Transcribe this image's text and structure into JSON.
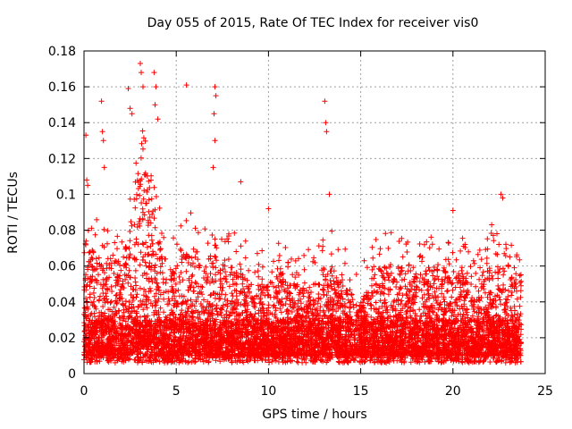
{
  "chart_data": {
    "type": "scatter",
    "title": "Day 055 of 2015, Rate Of TEC Index for receiver vis0",
    "xlabel": "GPS time / hours",
    "ylabel": "ROTI / TECUs",
    "xlim": [
      0,
      25
    ],
    "ylim": [
      0,
      0.18
    ],
    "xticks": [
      "0",
      "5",
      "10",
      "15",
      "20",
      "25"
    ],
    "yticks": [
      "0",
      "0.02",
      "0.04",
      "0.06",
      "0.08",
      "0.1",
      "0.12",
      "0.14",
      "0.16",
      "0.18"
    ],
    "grid": true,
    "marker": "+",
    "color": "#ff0000",
    "data_extent_hours": [
      0,
      23.7
    ],
    "envelope": {
      "note_hours": [
        0,
        0.3,
        0.6,
        1.0,
        1.5,
        2.0,
        2.5,
        3.0,
        3.5,
        4.0,
        4.5,
        5.0,
        5.5,
        6.0,
        6.5,
        7.0,
        7.5,
        8.0,
        8.5,
        9.0,
        9.5,
        10.0,
        10.5,
        11.0,
        11.5,
        12.0,
        12.5,
        13.0,
        13.5,
        14.0,
        14.5,
        15.0,
        15.5,
        16.0,
        16.5,
        17.0,
        17.5,
        18.0,
        18.5,
        19.0,
        19.5,
        20.0,
        20.5,
        21.0,
        21.5,
        22.0,
        22.5,
        23.0,
        23.5,
        23.7
      ],
      "upper_typical": [
        0.05,
        0.07,
        0.07,
        0.06,
        0.07,
        0.06,
        0.09,
        0.12,
        0.11,
        0.08,
        0.06,
        0.06,
        0.07,
        0.07,
        0.06,
        0.07,
        0.06,
        0.06,
        0.06,
        0.05,
        0.05,
        0.05,
        0.06,
        0.05,
        0.05,
        0.05,
        0.05,
        0.06,
        0.06,
        0.05,
        0.05,
        0.04,
        0.05,
        0.06,
        0.06,
        0.06,
        0.06,
        0.06,
        0.06,
        0.06,
        0.06,
        0.05,
        0.06,
        0.05,
        0.05,
        0.06,
        0.06,
        0.05,
        0.06,
        0.06
      ],
      "lower_typical": [
        0.01,
        0.01,
        0.01,
        0.01,
        0.01,
        0.01,
        0.01,
        0.015,
        0.015,
        0.01,
        0.01,
        0.01,
        0.01,
        0.01,
        0.01,
        0.01,
        0.01,
        0.01,
        0.01,
        0.01,
        0.01,
        0.01,
        0.01,
        0.01,
        0.01,
        0.01,
        0.01,
        0.01,
        0.01,
        0.01,
        0.01,
        0.01,
        0.01,
        0.01,
        0.01,
        0.01,
        0.01,
        0.01,
        0.01,
        0.01,
        0.01,
        0.01,
        0.01,
        0.01,
        0.01,
        0.01,
        0.01,
        0.01,
        0.01,
        0.01
      ]
    },
    "highlighted_points": [
      {
        "x": 0.1,
        "y": 0.133
      },
      {
        "x": 0.15,
        "y": 0.108
      },
      {
        "x": 0.2,
        "y": 0.105
      },
      {
        "x": 0.95,
        "y": 0.152
      },
      {
        "x": 1.0,
        "y": 0.135
      },
      {
        "x": 1.05,
        "y": 0.13
      },
      {
        "x": 1.1,
        "y": 0.115
      },
      {
        "x": 2.4,
        "y": 0.159
      },
      {
        "x": 2.5,
        "y": 0.148
      },
      {
        "x": 2.6,
        "y": 0.145
      },
      {
        "x": 3.05,
        "y": 0.173
      },
      {
        "x": 3.1,
        "y": 0.168
      },
      {
        "x": 3.2,
        "y": 0.16
      },
      {
        "x": 3.8,
        "y": 0.168
      },
      {
        "x": 3.9,
        "y": 0.16
      },
      {
        "x": 3.85,
        "y": 0.15
      },
      {
        "x": 4.0,
        "y": 0.142
      },
      {
        "x": 5.55,
        "y": 0.161
      },
      {
        "x": 7.1,
        "y": 0.16
      },
      {
        "x": 7.15,
        "y": 0.155
      },
      {
        "x": 7.05,
        "y": 0.145
      },
      {
        "x": 7.1,
        "y": 0.13
      },
      {
        "x": 7.0,
        "y": 0.115
      },
      {
        "x": 8.5,
        "y": 0.107
      },
      {
        "x": 10.0,
        "y": 0.092
      },
      {
        "x": 13.05,
        "y": 0.152
      },
      {
        "x": 13.1,
        "y": 0.14
      },
      {
        "x": 13.15,
        "y": 0.135
      },
      {
        "x": 13.3,
        "y": 0.1
      },
      {
        "x": 20.0,
        "y": 0.091
      },
      {
        "x": 22.6,
        "y": 0.1
      },
      {
        "x": 22.7,
        "y": 0.098
      },
      {
        "x": 22.1,
        "y": 0.083
      }
    ]
  }
}
